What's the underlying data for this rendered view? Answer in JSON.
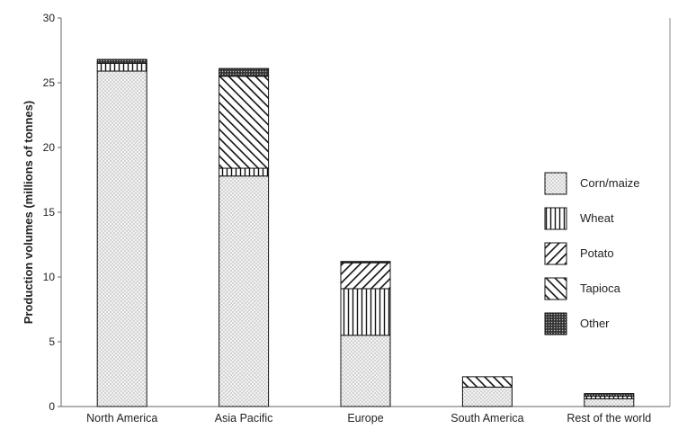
{
  "chart_data": {
    "type": "bar",
    "stacked": true,
    "categories": [
      "North America",
      "Asia Pacific",
      "Europe",
      "South America",
      "Rest of the world"
    ],
    "series": [
      {
        "name": "Corn/maize",
        "values": [
          25.9,
          17.8,
          5.5,
          1.5,
          0.6
        ],
        "pattern": "dots"
      },
      {
        "name": "Wheat",
        "values": [
          0.6,
          0.6,
          3.6,
          0.0,
          0.2
        ],
        "pattern": "vertical"
      },
      {
        "name": "Potato",
        "values": [
          0.0,
          0.0,
          2.0,
          0.0,
          0.0
        ],
        "pattern": "diag-up"
      },
      {
        "name": "Tapioca",
        "values": [
          0.0,
          7.1,
          0.0,
          0.8,
          0.0
        ],
        "pattern": "diag-down"
      },
      {
        "name": "Other",
        "values": [
          0.3,
          0.6,
          0.1,
          0.0,
          0.2
        ],
        "pattern": "dense"
      }
    ],
    "title": "",
    "xlabel": "",
    "ylabel": "Production volumes (millions of tonnes)",
    "ylim": [
      0,
      30
    ],
    "yticks": [
      0,
      5,
      10,
      15,
      20,
      25,
      30
    ],
    "grid": false,
    "legend_position": "right"
  }
}
